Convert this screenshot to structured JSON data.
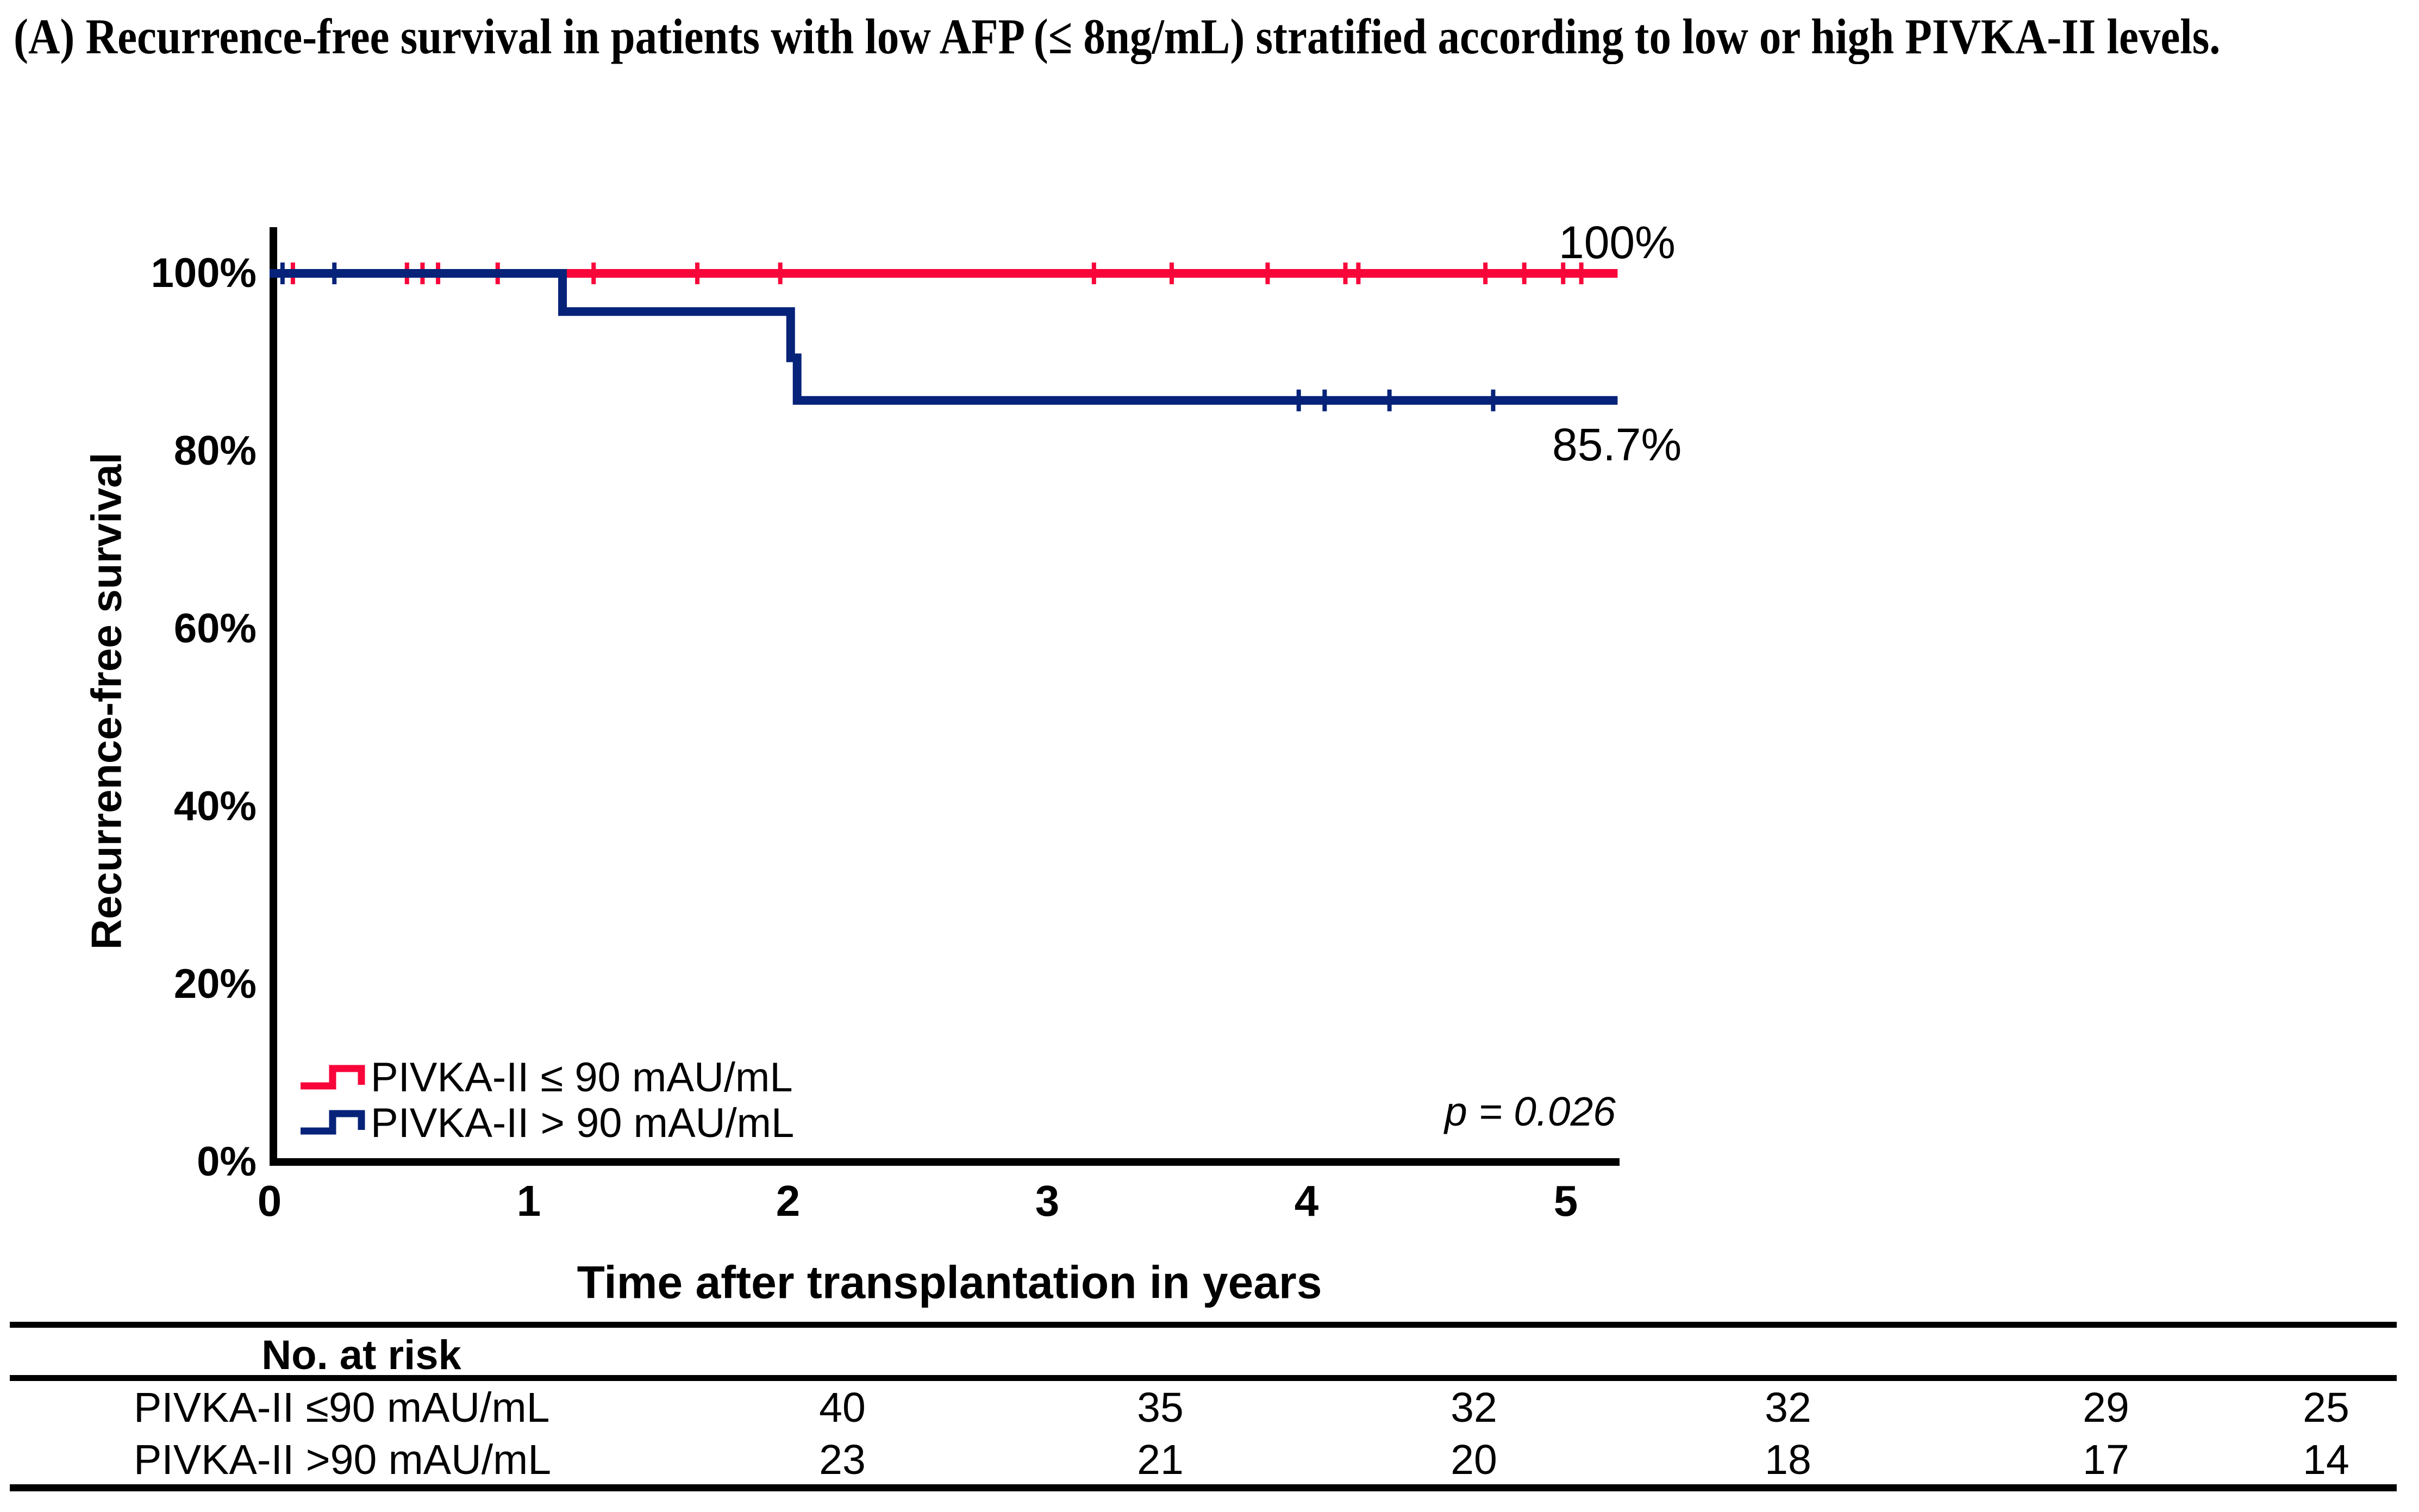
{
  "title": "(A) Recurrence-free survival in patients with low AFP (≤ 8ng/mL) stratified according to low or high PIVKA-II levels.",
  "colors": {
    "red": "#F8053A",
    "navy": "#062379",
    "axis": "#000000"
  },
  "chart_data": {
    "type": "line",
    "subtype": "kaplan-meier-step",
    "xlabel": "Time after transplantation in years",
    "ylabel": "Recurrence-free survival",
    "x_ticks": [
      "0",
      "1",
      "2",
      "3",
      "4",
      "5"
    ],
    "y_ticks": [
      "100%",
      "80%",
      "60%",
      "40%",
      "20%",
      "0%"
    ],
    "xlim": [
      0,
      5.25
    ],
    "ylim_percent": [
      0,
      100
    ],
    "grid": false,
    "legend_position": "lower-left-inside",
    "p_value": "p = 0.026",
    "series": [
      {
        "name": "PIVKA-II ≤ 90 mAU/mL",
        "color": "#F8053A",
        "end_label": "100%",
        "steps": [
          [
            0,
            100
          ],
          [
            5.2,
            100
          ]
        ],
        "censors": [
          [
            0.09,
            100
          ],
          [
            0.53,
            100
          ],
          [
            0.59,
            100
          ],
          [
            0.65,
            100
          ],
          [
            0.88,
            100
          ],
          [
            1.25,
            100
          ],
          [
            1.65,
            100
          ],
          [
            1.97,
            100
          ],
          [
            3.18,
            100
          ],
          [
            3.48,
            100
          ],
          [
            3.85,
            100
          ],
          [
            4.15,
            100
          ],
          [
            4.2,
            100
          ],
          [
            4.69,
            100
          ],
          [
            4.84,
            100
          ],
          [
            4.99,
            100
          ],
          [
            5.06,
            100
          ]
        ]
      },
      {
        "name": "PIVKA-II > 90 mAU/mL",
        "color": "#062379",
        "end_label": "85.7%",
        "steps": [
          [
            0,
            100
          ],
          [
            1.13,
            100
          ],
          [
            1.13,
            95.7
          ],
          [
            2.01,
            95.7
          ],
          [
            2.01,
            90.5
          ],
          [
            2.035,
            90.5
          ],
          [
            2.035,
            85.7
          ],
          [
            5.2,
            85.7
          ]
        ],
        "censors": [
          [
            0.05,
            100
          ],
          [
            0.25,
            100
          ],
          [
            3.97,
            85.7
          ],
          [
            4.07,
            85.7
          ],
          [
            4.32,
            85.7
          ],
          [
            4.72,
            85.7
          ]
        ]
      }
    ]
  },
  "legend": {
    "items": [
      {
        "label": "PIVKA-II ≤ 90 mAU/mL",
        "color": "#F8053A"
      },
      {
        "label": "PIVKA-II > 90 mAU/mL",
        "color": "#062379"
      }
    ]
  },
  "annotations": {
    "red_end": "100%",
    "blue_end": "85.7%",
    "p_value": "p = 0.026"
  },
  "risk_table": {
    "header": "No. at risk",
    "rows": [
      {
        "label": "PIVKA-II ≤90 mAU/mL",
        "values": [
          "40",
          "35",
          "32",
          "32",
          "29",
          "25"
        ]
      },
      {
        "label": "PIVKA-II >90 mAU/mL",
        "values": [
          "23",
          "21",
          "20",
          "18",
          "17",
          "14"
        ]
      }
    ]
  }
}
